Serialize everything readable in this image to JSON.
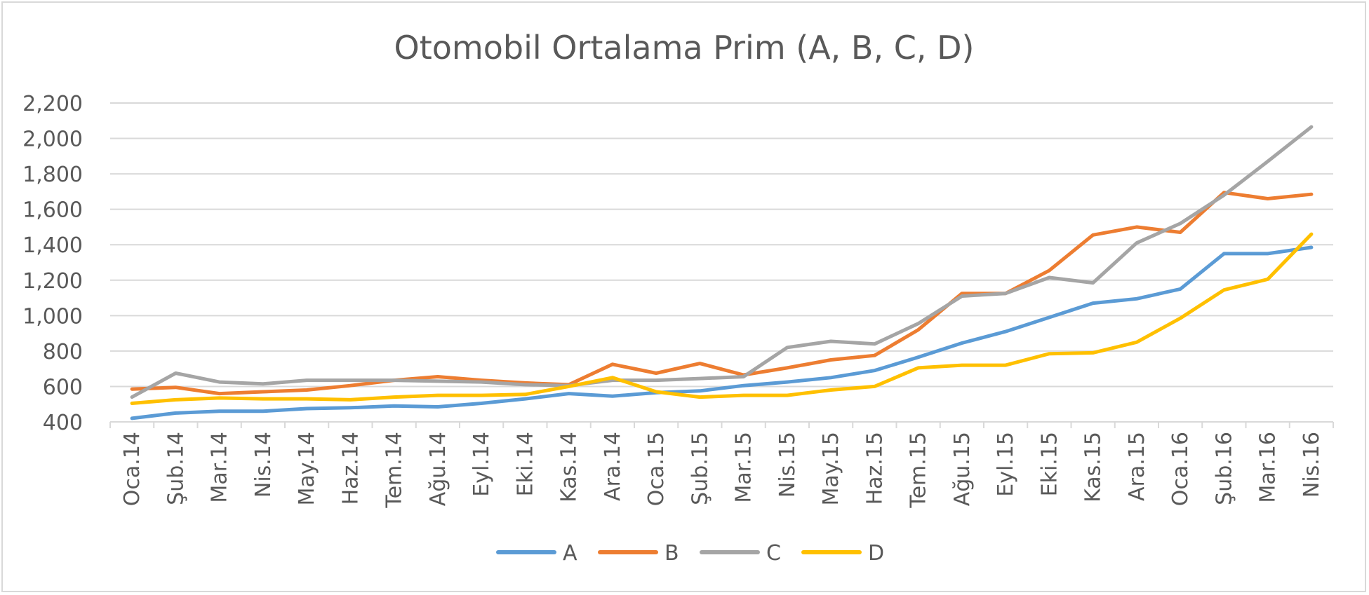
{
  "chart_data": {
    "type": "line",
    "title": "Otomobil Ortalama Prim (A, B, C, D)",
    "xlabel": "",
    "ylabel": "",
    "ylim": [
      400,
      2200
    ],
    "yticks": [
      "400",
      "600",
      "800",
      "1,000",
      "1,200",
      "1,400",
      "1,600",
      "1,800",
      "2,000",
      "2,200"
    ],
    "ytick_values": [
      400,
      600,
      800,
      1000,
      1200,
      1400,
      1600,
      1800,
      2000,
      2200
    ],
    "grid": true,
    "legend_position": "bottom",
    "categories": [
      "Oca.14",
      "Şub.14",
      "Mar.14",
      "Nis.14",
      "May.14",
      "Haz.14",
      "Tem.14",
      "Ağu.14",
      "Eyl.14",
      "Eki.14",
      "Kas.14",
      "Ara.14",
      "Oca.15",
      "Şub.15",
      "Mar.15",
      "Nis.15",
      "May.15",
      "Haz.15",
      "Tem.15",
      "Ağu.15",
      "Eyl.15",
      "Eki.15",
      "Kas.15",
      "Ara.15",
      "Oca.16",
      "Şub.16",
      "Mar.16",
      "Nis.16"
    ],
    "series": [
      {
        "name": "A",
        "color": "#5b9bd5",
        "values": [
          420,
          450,
          460,
          460,
          475,
          480,
          490,
          485,
          505,
          530,
          560,
          545,
          565,
          575,
          605,
          625,
          650,
          690,
          765,
          845,
          910,
          990,
          1070,
          1095,
          1150,
          1350,
          1350,
          1385
        ]
      },
      {
        "name": "B",
        "color": "#ed7d31",
        "values": [
          585,
          595,
          560,
          570,
          580,
          605,
          635,
          655,
          635,
          620,
          610,
          725,
          675,
          730,
          665,
          705,
          750,
          775,
          920,
          1125,
          1125,
          1255,
          1455,
          1500,
          1470,
          1695,
          1660,
          1685
        ]
      },
      {
        "name": "C",
        "color": "#a5a5a5",
        "values": [
          540,
          675,
          625,
          615,
          635,
          635,
          635,
          630,
          625,
          610,
          605,
          635,
          635,
          645,
          655,
          820,
          855,
          840,
          955,
          1110,
          1125,
          1215,
          1185,
          1410,
          1520,
          1680,
          1870,
          2065
        ]
      },
      {
        "name": "D",
        "color": "#ffc000",
        "values": [
          505,
          525,
          535,
          530,
          530,
          525,
          540,
          550,
          550,
          555,
          600,
          650,
          570,
          540,
          550,
          550,
          580,
          600,
          705,
          720,
          720,
          785,
          790,
          850,
          985,
          1145,
          1205,
          1460
        ]
      }
    ]
  }
}
